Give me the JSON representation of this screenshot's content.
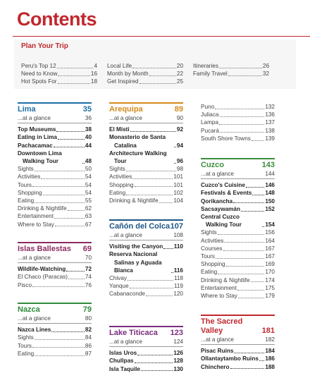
{
  "title": "Contents",
  "plan": {
    "title": "Plan Your Trip",
    "columns": [
      [
        {
          "label": "Peru's Top 12",
          "page": 4
        },
        {
          "label": "Need to Know",
          "page": 16
        },
        {
          "label": "Hot Spots For",
          "page": 18
        }
      ],
      [
        {
          "label": "Local Life",
          "page": 20
        },
        {
          "label": "Month by Month",
          "page": 22
        },
        {
          "label": "Get Inspired",
          "page": 25
        }
      ],
      [
        {
          "label": "Itineraries",
          "page": 26
        },
        {
          "label": "Family Travel",
          "page": 32
        }
      ]
    ]
  },
  "columns": [
    [
      {
        "title": "Lima",
        "page": 35,
        "glance": {
          "label": "...at a glance",
          "page": 36
        },
        "highlights": [
          {
            "label": "Top Museums",
            "page": 38
          },
          {
            "label": "Eating in Lima",
            "page": 40
          },
          {
            "label": "Pachacamac",
            "page": 44
          },
          {
            "label": "Downtown Lima Walking Tour",
            "page": 48
          }
        ],
        "entries": [
          {
            "label": "Sights",
            "page": 50
          },
          {
            "label": "Activities",
            "page": 54
          },
          {
            "label": "Tours",
            "page": 54
          },
          {
            "label": "Shopping",
            "page": 54
          },
          {
            "label": "Eating",
            "page": 55
          },
          {
            "label": "Drinking & Nightlife",
            "page": 62
          },
          {
            "label": "Entertainment",
            "page": 63
          },
          {
            "label": "Where to Stay",
            "page": 67
          }
        ]
      },
      {
        "title": "Islas Ballestas",
        "page": 69,
        "glance": {
          "label": "...at a glance",
          "page": 70
        },
        "highlights": [
          {
            "label": "Wildlife-Watching",
            "page": 72
          }
        ],
        "entries": [
          {
            "label": "El Chaco (Paracas)",
            "page": 74
          },
          {
            "label": "Pisco",
            "page": 76
          }
        ]
      },
      {
        "title": "Nazca",
        "page": 79,
        "glance": {
          "label": "...at a glance",
          "page": 80
        },
        "highlights": [
          {
            "label": "Nazca Lines",
            "page": 82
          }
        ],
        "entries": [
          {
            "label": "Sights",
            "page": 84
          },
          {
            "label": "Tours",
            "page": 86
          },
          {
            "label": "Eating",
            "page": 87
          }
        ]
      }
    ],
    [
      {
        "title": "Arequipa",
        "page": 89,
        "glance": {
          "label": "...at a glance",
          "page": 90
        },
        "highlights": [
          {
            "label": "El Misti",
            "page": 92
          },
          {
            "label": "Monasterio de Santa Catalina",
            "page": 94
          },
          {
            "label": "Architecture Walking Tour",
            "page": 96
          }
        ],
        "entries": [
          {
            "label": "Sights",
            "page": 98
          },
          {
            "label": "Activities",
            "page": 101
          },
          {
            "label": "Shopping",
            "page": 101
          },
          {
            "label": "Eating",
            "page": 102
          },
          {
            "label": "Drinking & Nightlife",
            "page": 104
          }
        ]
      },
      {
        "title": "Cañón del Colca",
        "page": 107,
        "glance": {
          "label": "...at a glance",
          "page": 108
        },
        "highlights": [
          {
            "label": "Visiting the Canyon",
            "page": 110
          },
          {
            "label": "Reserva Nacional Salinas y Aguada Blanca",
            "page": 116
          }
        ],
        "entries": [
          {
            "label": "Chivay",
            "page": 118
          },
          {
            "label": "Yanque",
            "page": 119
          },
          {
            "label": "Cabanaconde",
            "page": 120
          }
        ]
      },
      {
        "title": "Lake Titicaca",
        "page": 123,
        "glance": {
          "label": "...at a glance",
          "page": 124
        },
        "highlights": [
          {
            "label": "Islas Uros",
            "page": 126
          },
          {
            "label": "Chullpas",
            "page": 128
          },
          {
            "label": "Isla Taquile",
            "page": 130
          }
        ],
        "entries": []
      }
    ],
    [
      {
        "entries": [
          {
            "label": "Puno",
            "page": 132
          },
          {
            "label": "Juliaca",
            "page": 136
          },
          {
            "label": "Lampa",
            "page": 137
          },
          {
            "label": "Pucará",
            "page": 138
          },
          {
            "label": "South Shore Towns",
            "page": 139
          }
        ]
      },
      {
        "title": "Cuzco",
        "page": 143,
        "glance": {
          "label": "...at a glance",
          "page": 144
        },
        "highlights": [
          {
            "label": "Cuzco's Cuisine",
            "page": 146
          },
          {
            "label": "Festivals & Events",
            "page": 148
          },
          {
            "label": "Qorikancha",
            "page": 150
          },
          {
            "label": "Sacsaywamán",
            "page": 152
          },
          {
            "label": "Central Cuzco Walking Tour",
            "page": 154
          }
        ],
        "entries": [
          {
            "label": "Sights",
            "page": 156
          },
          {
            "label": "Activities",
            "page": 164
          },
          {
            "label": "Courses",
            "page": 167
          },
          {
            "label": "Tours",
            "page": 167
          },
          {
            "label": "Shopping",
            "page": 169
          },
          {
            "label": "Eating",
            "page": 170
          },
          {
            "label": "Drinking & Nightlife",
            "page": 174
          },
          {
            "label": "Entertainment",
            "page": 175
          },
          {
            "label": "Where to Stay",
            "page": 179
          }
        ]
      },
      {
        "title": "The Sacred Valley",
        "page": 181,
        "glance": {
          "label": "...at a glance",
          "page": 182
        },
        "highlights": [
          {
            "label": "Pisac Ruins",
            "page": 184
          },
          {
            "label": "Ollantaytambo Ruins",
            "page": 186
          },
          {
            "label": "Chinchero",
            "page": 188
          }
        ],
        "entries": []
      }
    ]
  ]
}
